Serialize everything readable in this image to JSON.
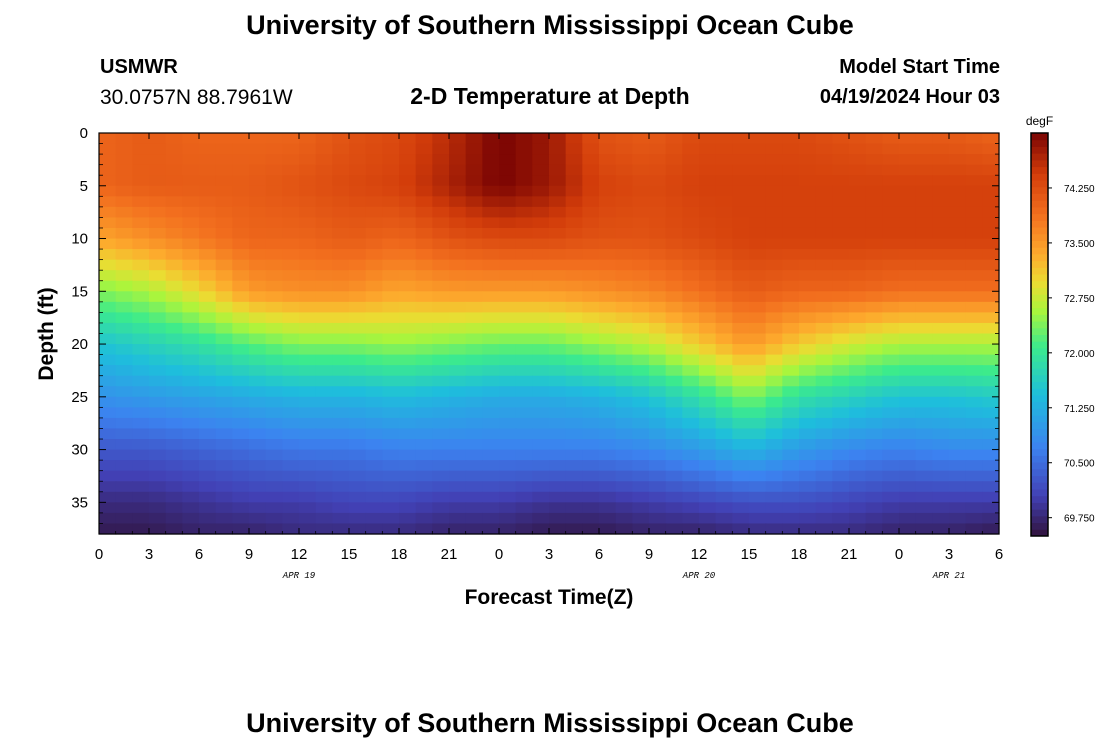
{
  "header": {
    "title": "University of Southern Mississippi Ocean Cube",
    "station": "USMWR",
    "coordinates": "30.0757N  88.7961W",
    "plot_title": "2-D Temperature at Depth",
    "model_label": "Model Start Time",
    "model_date": "04/19/2024 Hour 03"
  },
  "footer": {
    "title": "University of Southern Mississippi Ocean Cube"
  },
  "chart_data": {
    "type": "heatmap",
    "title": "2-D Temperature at Depth",
    "xlabel": "Forecast Time(Z)",
    "ylabel": "Depth (ft)",
    "x_range_hours": [
      0,
      54
    ],
    "y_range_ft": [
      0,
      38
    ],
    "x_tick_labels": [
      "0",
      "3",
      "6",
      "9",
      "12",
      "15",
      "18",
      "21",
      "0",
      "3",
      "6",
      "9",
      "12",
      "15",
      "18",
      "21",
      "0",
      "3",
      "6"
    ],
    "x_tick_hours": [
      0,
      3,
      6,
      9,
      12,
      15,
      18,
      21,
      24,
      27,
      30,
      33,
      36,
      39,
      42,
      45,
      48,
      51,
      54
    ],
    "date_labels": [
      {
        "text": "APR 19",
        "hour": 12
      },
      {
        "text": "APR 20",
        "hour": 36
      },
      {
        "text": "APR 21",
        "hour": 51
      }
    ],
    "y_tick_labels": [
      "0",
      "5",
      "10",
      "15",
      "20",
      "25",
      "30",
      "35"
    ],
    "y_tick_values": [
      0,
      5,
      10,
      15,
      20,
      25,
      30,
      35
    ],
    "colorbar": {
      "unit": "degF",
      "range": [
        69.5,
        75.0
      ],
      "tick_labels": [
        "74.250",
        "73.500",
        "72.750",
        "72.000",
        "71.250",
        "70.500",
        "69.750"
      ],
      "tick_values": [
        74.25,
        73.5,
        72.75,
        72.0,
        71.25,
        70.5,
        69.75
      ]
    },
    "series": {
      "time_hours": [
        0,
        3,
        6,
        9,
        12,
        15,
        18,
        21,
        24,
        27,
        30,
        33,
        36,
        39,
        42,
        45,
        48,
        51,
        54
      ],
      "depth_ft": [
        0,
        5,
        10,
        15,
        20,
        25,
        30,
        35,
        38
      ],
      "temperature_degF": [
        [
          74.0,
          74.1,
          74.0,
          74.0,
          74.0,
          74.2,
          74.3,
          74.6,
          75.0,
          74.8,
          74.2,
          74.1,
          74.3,
          74.3,
          74.3,
          74.2,
          74.1,
          74.1,
          74.0
        ],
        [
          74.0,
          74.1,
          74.1,
          74.1,
          74.2,
          74.3,
          74.4,
          74.7,
          75.0,
          74.8,
          74.4,
          74.3,
          74.4,
          74.4,
          74.4,
          74.4,
          74.4,
          74.4,
          74.4
        ],
        [
          73.4,
          73.6,
          73.8,
          74.0,
          74.0,
          74.1,
          74.0,
          74.2,
          74.3,
          74.3,
          74.2,
          74.2,
          74.3,
          74.4,
          74.4,
          74.4,
          74.4,
          74.4,
          74.4
        ],
        [
          72.4,
          72.6,
          73.0,
          73.5,
          73.6,
          73.6,
          73.4,
          73.5,
          73.5,
          73.5,
          73.6,
          73.7,
          73.9,
          74.1,
          74.0,
          74.0,
          73.9,
          73.9,
          73.9
        ],
        [
          71.5,
          71.7,
          71.9,
          72.2,
          72.4,
          72.4,
          72.5,
          72.4,
          72.3,
          72.3,
          72.5,
          72.7,
          73.1,
          73.5,
          73.1,
          72.8,
          72.6,
          72.6,
          72.6
        ],
        [
          70.9,
          71.0,
          71.1,
          71.2,
          71.3,
          71.3,
          71.4,
          71.3,
          71.2,
          71.2,
          71.3,
          71.5,
          71.9,
          72.4,
          71.9,
          71.7,
          71.5,
          71.5,
          71.6
        ],
        [
          70.3,
          70.3,
          70.4,
          70.5,
          70.6,
          70.6,
          70.7,
          70.7,
          70.7,
          70.7,
          70.7,
          70.8,
          71.0,
          71.3,
          71.0,
          70.8,
          70.7,
          70.8,
          70.8
        ],
        [
          69.8,
          69.8,
          69.9,
          70.0,
          70.0,
          70.1,
          70.1,
          70.0,
          70.0,
          69.9,
          69.9,
          70.0,
          70.1,
          70.2,
          70.2,
          70.1,
          70.0,
          70.0,
          70.0
        ],
        [
          69.6,
          69.6,
          69.7,
          69.7,
          69.8,
          69.8,
          69.8,
          69.7,
          69.7,
          69.6,
          69.6,
          69.7,
          69.7,
          69.8,
          69.8,
          69.8,
          69.7,
          69.7,
          69.6
        ]
      ]
    }
  }
}
